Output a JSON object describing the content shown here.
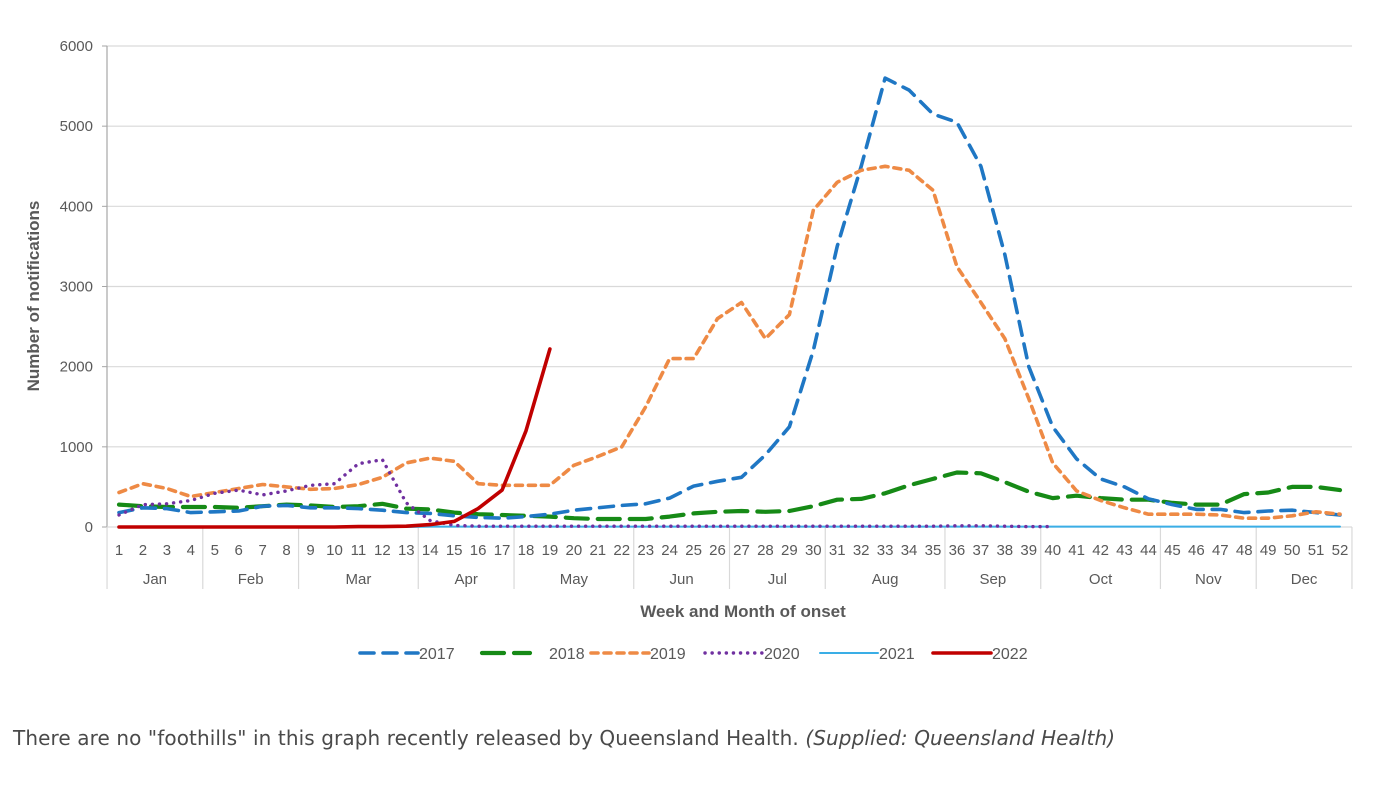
{
  "chart_data": {
    "type": "line",
    "title": "",
    "xlabel": "Week and Month of onset",
    "ylabel": "Number of notifications",
    "ylim": [
      0,
      6000
    ],
    "yticks": [
      0,
      1000,
      2000,
      3000,
      4000,
      5000,
      6000
    ],
    "grid": true,
    "legend_position": "bottom",
    "x": [
      1,
      2,
      3,
      4,
      5,
      6,
      7,
      8,
      9,
      10,
      11,
      12,
      13,
      14,
      15,
      16,
      17,
      18,
      19,
      20,
      21,
      22,
      23,
      24,
      25,
      26,
      27,
      28,
      29,
      30,
      31,
      32,
      33,
      34,
      35,
      36,
      37,
      38,
      39,
      40,
      41,
      42,
      43,
      44,
      45,
      46,
      47,
      48,
      49,
      50,
      51,
      52
    ],
    "months": [
      {
        "label": "Jan",
        "weeks": [
          1,
          4
        ]
      },
      {
        "label": "Feb",
        "weeks": [
          5,
          8
        ]
      },
      {
        "label": "Mar",
        "weeks": [
          9,
          13
        ]
      },
      {
        "label": "Apr",
        "weeks": [
          14,
          17
        ]
      },
      {
        "label": "May",
        "weeks": [
          18,
          22
        ]
      },
      {
        "label": "Jun",
        "weeks": [
          23,
          26
        ]
      },
      {
        "label": "Jul",
        "weeks": [
          27,
          30
        ]
      },
      {
        "label": "Aug",
        "weeks": [
          31,
          35
        ]
      },
      {
        "label": "Sep",
        "weeks": [
          36,
          39
        ]
      },
      {
        "label": "Oct",
        "weeks": [
          40,
          44
        ]
      },
      {
        "label": "Nov",
        "weeks": [
          45,
          48
        ]
      },
      {
        "label": "Dec",
        "weeks": [
          49,
          52
        ]
      }
    ],
    "series": [
      {
        "name": "2017",
        "color": "#1f77c4",
        "style": "dash",
        "values": [
          180,
          240,
          230,
          180,
          190,
          200,
          260,
          270,
          240,
          240,
          230,
          210,
          180,
          170,
          140,
          120,
          110,
          130,
          160,
          210,
          240,
          270,
          290,
          360,
          510,
          570,
          620,
          900,
          1250,
          2200,
          3500,
          4500,
          5600,
          5450,
          5150,
          5050,
          4500,
          3400,
          2000,
          1250,
          850,
          600,
          500,
          350,
          280,
          220,
          220,
          180,
          200,
          210,
          180,
          150
        ]
      },
      {
        "name": "2018",
        "color": "#168a16",
        "style": "longdash",
        "values": [
          280,
          260,
          250,
          250,
          250,
          240,
          260,
          280,
          270,
          250,
          260,
          290,
          230,
          220,
          180,
          160,
          150,
          140,
          130,
          110,
          100,
          100,
          100,
          130,
          170,
          190,
          200,
          190,
          200,
          260,
          340,
          350,
          420,
          520,
          600,
          680,
          670,
          560,
          440,
          360,
          390,
          360,
          340,
          340,
          300,
          280,
          280,
          410,
          430,
          500,
          500,
          460
        ]
      },
      {
        "name": "2019",
        "color": "#ee8a45",
        "style": "shortdash",
        "values": [
          430,
          540,
          480,
          380,
          430,
          480,
          530,
          500,
          470,
          480,
          530,
          620,
          800,
          860,
          820,
          540,
          520,
          520,
          520,
          770,
          880,
          1000,
          1500,
          2100,
          2100,
          2600,
          2800,
          2350,
          2650,
          3950,
          4300,
          4450,
          4500,
          4450,
          4200,
          3250,
          2800,
          2350,
          1600,
          800,
          450,
          330,
          240,
          160,
          160,
          160,
          150,
          110,
          110,
          140,
          190,
          160
        ]
      },
      {
        "name": "2020",
        "color": "#7030a0",
        "style": "dot",
        "values": [
          150,
          280,
          290,
          330,
          420,
          460,
          400,
          450,
          520,
          540,
          790,
          840,
          300,
          80,
          20,
          10,
          10,
          10,
          10,
          10,
          10,
          10,
          10,
          10,
          10,
          10,
          10,
          10,
          10,
          10,
          10,
          10,
          10,
          10,
          10,
          15,
          15,
          10,
          5,
          5,
          null,
          null,
          null,
          null,
          null,
          null,
          null,
          null,
          null,
          null,
          null,
          null
        ]
      },
      {
        "name": "2021",
        "color": "#3aaee6",
        "style": "solid-thin",
        "values": [
          0,
          0,
          0,
          0,
          0,
          0,
          0,
          0,
          0,
          0,
          0,
          0,
          0,
          5,
          5,
          5,
          5,
          5,
          5,
          5,
          5,
          5,
          5,
          5,
          5,
          5,
          5,
          5,
          5,
          5,
          5,
          5,
          5,
          5,
          5,
          5,
          5,
          5,
          5,
          5,
          5,
          5,
          5,
          5,
          5,
          5,
          5,
          5,
          5,
          5,
          5,
          5
        ]
      },
      {
        "name": "2022",
        "color": "#c00000",
        "style": "solid",
        "values": [
          0,
          0,
          0,
          0,
          0,
          0,
          0,
          0,
          0,
          0,
          5,
          5,
          10,
          30,
          70,
          230,
          460,
          1200,
          2220,
          null,
          null,
          null,
          null,
          null,
          null,
          null,
          null,
          null,
          null,
          null,
          null,
          null,
          null,
          null,
          null,
          null,
          null,
          null,
          null,
          null,
          null,
          null,
          null,
          null,
          null,
          null,
          null,
          null,
          null,
          null,
          null,
          null
        ]
      }
    ]
  },
  "caption": {
    "text": "There are no \"foothills\" in this graph recently released by Queensland Health.",
    "credit": "(Supplied: Queensland Health)"
  }
}
